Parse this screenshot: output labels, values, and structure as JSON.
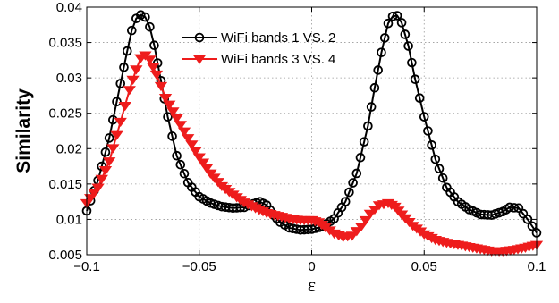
{
  "chart_data": {
    "type": "line",
    "title": "",
    "xlabel": "ε",
    "ylabel": "Similarity",
    "xlim": [
      -0.1,
      0.1
    ],
    "ylim": [
      0.005,
      0.04
    ],
    "grid": true,
    "legend_position": "top-center",
    "x_ticks": [
      -0.1,
      -0.05,
      0,
      0.05,
      0.1
    ],
    "x_tick_labels": [
      "−0.1",
      "−0.05",
      "0",
      "0.05",
      "0.1"
    ],
    "y_ticks": [
      0.005,
      0.01,
      0.015,
      0.02,
      0.025,
      0.03,
      0.035,
      0.04
    ],
    "y_tick_labels": [
      "0.005",
      "0.01",
      "0.015",
      "0.02",
      "0.025",
      "0.03",
      "0.035",
      "0.04"
    ],
    "series": [
      {
        "name": "WiFi bands 1 VS. 2",
        "color": "#000000",
        "marker": "circle",
        "x": [
          -0.1,
          -0.095,
          -0.09,
          -0.085,
          -0.082,
          -0.08,
          -0.078,
          -0.076,
          -0.074,
          -0.072,
          -0.07,
          -0.067,
          -0.064,
          -0.06,
          -0.055,
          -0.05,
          -0.045,
          -0.04,
          -0.035,
          -0.03,
          -0.026,
          -0.023,
          -0.02,
          -0.017,
          -0.014,
          -0.01,
          -0.005,
          0,
          0.005,
          0.01,
          0.015,
          0.02,
          0.025,
          0.028,
          0.031,
          0.034,
          0.036,
          0.038,
          0.04,
          0.043,
          0.046,
          0.05,
          0.055,
          0.06,
          0.065,
          0.07,
          0.075,
          0.08,
          0.085,
          0.088,
          0.092,
          0.096,
          0.1
        ],
        "y": [
          0.0112,
          0.0155,
          0.0215,
          0.0292,
          0.0338,
          0.0367,
          0.0384,
          0.0389,
          0.0386,
          0.0372,
          0.0346,
          0.0296,
          0.0245,
          0.019,
          0.0152,
          0.0132,
          0.0123,
          0.0118,
          0.0116,
          0.0117,
          0.0122,
          0.0125,
          0.012,
          0.0106,
          0.0096,
          0.0088,
          0.0085,
          0.0086,
          0.009,
          0.0101,
          0.0125,
          0.0165,
          0.0232,
          0.0286,
          0.0336,
          0.0377,
          0.0387,
          0.0388,
          0.0378,
          0.0345,
          0.0298,
          0.0245,
          0.0185,
          0.0145,
          0.0125,
          0.0114,
          0.0107,
          0.0106,
          0.0111,
          0.0117,
          0.0116,
          0.01,
          0.0081
        ]
      },
      {
        "name": "WiFi bands 3 VS. 4",
        "color": "#ee1c1c",
        "marker": "triangle-down",
        "x": [
          -0.1,
          -0.095,
          -0.09,
          -0.085,
          -0.081,
          -0.078,
          -0.076,
          -0.074,
          -0.072,
          -0.069,
          -0.065,
          -0.06,
          -0.055,
          -0.05,
          -0.045,
          -0.04,
          -0.035,
          -0.03,
          -0.025,
          -0.02,
          -0.015,
          -0.01,
          -0.005,
          0,
          0.003,
          0.006,
          0.01,
          0.014,
          0.018,
          0.022,
          0.026,
          0.03,
          0.034,
          0.037,
          0.04,
          0.045,
          0.05,
          0.055,
          0.06,
          0.065,
          0.07,
          0.075,
          0.08,
          0.085,
          0.09,
          0.095,
          0.1
        ],
        "y": [
          0.0123,
          0.0145,
          0.0182,
          0.0238,
          0.0283,
          0.0312,
          0.0328,
          0.0332,
          0.0326,
          0.0305,
          0.0272,
          0.0243,
          0.0215,
          0.0188,
          0.0165,
          0.0147,
          0.0135,
          0.0124,
          0.0116,
          0.0109,
          0.0105,
          0.0101,
          0.0099,
          0.0099,
          0.0096,
          0.0089,
          0.008,
          0.0075,
          0.0077,
          0.009,
          0.0108,
          0.012,
          0.0123,
          0.0118,
          0.0107,
          0.0091,
          0.0079,
          0.0071,
          0.0067,
          0.0064,
          0.0061,
          0.0058,
          0.0055,
          0.0055,
          0.0057,
          0.006,
          0.0064
        ]
      }
    ]
  }
}
